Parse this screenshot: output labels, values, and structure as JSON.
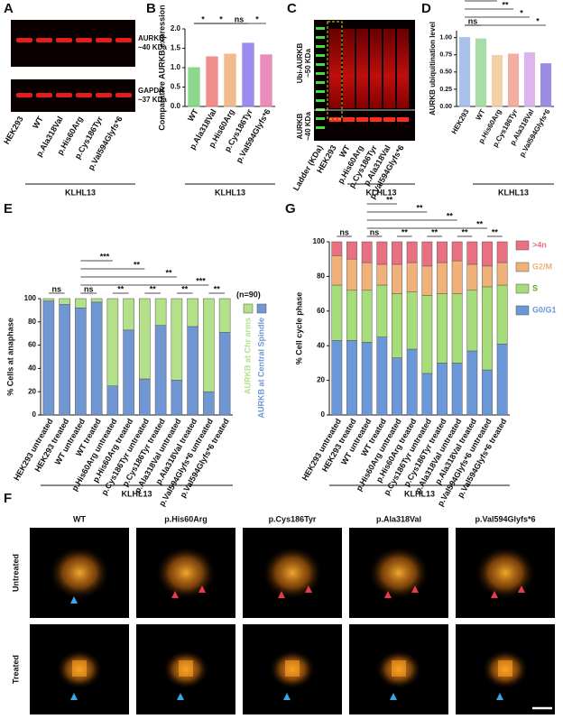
{
  "panel_a": {
    "label": "A",
    "blots": [
      {
        "protein": "AURKB",
        "size": "~40 KDa"
      },
      {
        "protein": "GAPDH",
        "size": "~37 KDa"
      }
    ],
    "lanes": [
      "HEK293",
      "WT",
      "p.Ala318Val",
      "p.His60Arg",
      "p.Cys186Tyr",
      "p.Val594Glyfs*6"
    ],
    "group": "KLHL13"
  },
  "panel_c": {
    "label": "C",
    "bands": [
      {
        "protein": "Ubi-AURKB",
        "size": "~50 KDa"
      },
      {
        "protein": "AURKB",
        "size": "~40 KDa"
      }
    ],
    "lanes": [
      "Ladder (KDa)",
      "HEK293",
      "WT",
      "p.His60Arg",
      "p.Cys186Tyr",
      "p.Ala318Val",
      "p.Val594Glyfs*6"
    ],
    "group": "KLHL13"
  },
  "panel_f": {
    "label": "F",
    "columns": [
      "WT",
      "p.His60Arg",
      "p.Cys186Tyr",
      "p.Ala318Val",
      "p.Val594Glyfs*6"
    ],
    "rows": [
      "Untreated",
      "Treated"
    ]
  },
  "chart_data": [
    {
      "panel": "B",
      "type": "bar",
      "ylabel": "Comparative AURKB expression",
      "categories": [
        "WT",
        "p.Ala318Val",
        "p.His60Arg",
        "p.Cys186Tyr",
        "p.Val594Glyfs*6"
      ],
      "values": [
        1.0,
        1.28,
        1.35,
        1.63,
        1.33
      ],
      "colors": [
        "#7ad27a",
        "#f07a7a",
        "#f0b07a",
        "#8a7ae8",
        "#e87ab0"
      ],
      "ylim": [
        0,
        2
      ],
      "yticks": [
        {
          "value": 0,
          "label": "0.0"
        },
        0.5,
        {
          "value": 1,
          "label": "1.0"
        },
        1.5,
        {
          "value": 2,
          "label": "2.0"
        }
      ],
      "significance": [
        "*",
        "*",
        "ns",
        "*"
      ],
      "group": "KLHL13"
    },
    {
      "panel": "D",
      "type": "bar",
      "ylabel": "AURKB ubiquitination level",
      "categories": [
        "HEK293",
        "WT",
        "p.His60Arg",
        "p.Cys186Tyr",
        "p.Ala318Val",
        "p.Val594Glyfs*6"
      ],
      "values": [
        1.0,
        0.98,
        0.74,
        0.76,
        0.78,
        0.62
      ],
      "colors": [
        "#9ab8e8",
        "#9ad89a",
        "#f2c89a",
        "#f0a090",
        "#d8a8e8",
        "#8a7ae0"
      ],
      "ylim": [
        0,
        1.1
      ],
      "yticks": [
        {
          "value": 0,
          "label": "0.00"
        },
        0.25,
        {
          "value": 0.5,
          "label": "0.50"
        },
        0.75,
        {
          "value": 1,
          "label": "1.00"
        }
      ],
      "significance": [
        "ns",
        "**",
        "**",
        "*",
        "*"
      ],
      "group": "KLHL13"
    },
    {
      "panel": "E",
      "type": "stacked_bar",
      "ylabel": "% Cells at anaphase",
      "note": "(n=90)",
      "categories": [
        "HEK293 untreated",
        "HEK293 treated",
        "WT untreated",
        "WT treated",
        "p.His60Arg untreated",
        "p.His60Arg treated",
        "p.Cys186Tyr untreated",
        "p.Cys186Tyr treated",
        "p.Ala318Val untreated",
        "p.Ala318Val treated",
        "p.Val594Glyfs*6 untreated",
        "p.Val594Glyfs*6 treated"
      ],
      "series": [
        {
          "name": "AURKB at Central Spindle",
          "color": "#7096d4",
          "values": [
            98,
            95,
            92,
            97,
            25,
            73,
            31,
            77,
            30,
            76,
            20,
            71
          ]
        },
        {
          "name": "AURKB at Chr arms",
          "color": "#b4e08a",
          "values": [
            2,
            5,
            8,
            3,
            75,
            27,
            69,
            23,
            70,
            24,
            80,
            29
          ]
        }
      ],
      "ylim": [
        0,
        100
      ],
      "yticks": [
        0,
        20,
        40,
        60,
        80,
        100
      ],
      "significance": [
        "ns",
        "ns",
        "**",
        "**",
        "**",
        "**",
        "***",
        "**",
        "**",
        "***"
      ],
      "group": "KLHL13"
    },
    {
      "panel": "G",
      "type": "stacked_bar",
      "ylabel": "% Cell cycle phase",
      "categories": [
        "HEK293 untreated",
        "HEK293 treated",
        "WT untreated",
        "WT treated",
        "p.His60Arg untreated",
        "p.His60Arg treated",
        "p.Cys186Tyr untreated",
        "p.Cys186Tyr treated",
        "p.Ala318Val untreated",
        "p.Ala318Val treated",
        "p.Val594Glyfs*6 untreated",
        "p.Val594Glyfs*6 treated"
      ],
      "series": [
        {
          "name": "G0/G1",
          "color": "#6b98d8",
          "values": [
            43,
            43,
            42,
            45,
            33,
            38,
            24,
            30,
            30,
            37,
            26,
            41
          ]
        },
        {
          "name": "S",
          "color": "#a6dc7a",
          "values": [
            32,
            29,
            30,
            30,
            37,
            33,
            45,
            40,
            40,
            35,
            48,
            34
          ]
        },
        {
          "name": "G2/M",
          "color": "#eeb27a",
          "values": [
            17,
            18,
            16,
            12,
            17,
            17,
            17,
            18,
            19,
            15,
            12,
            13
          ]
        },
        {
          "name": ">4n",
          "color": "#e87080",
          "values": [
            8,
            10,
            12,
            13,
            13,
            12,
            14,
            12,
            11,
            13,
            14,
            12
          ]
        }
      ],
      "ylim": [
        0,
        100
      ],
      "yticks": [
        0,
        20,
        40,
        60,
        80,
        100
      ],
      "significance": [
        "ns",
        "ns",
        "**",
        "**",
        "**",
        "**",
        "**",
        "**",
        "**",
        "**"
      ],
      "group": "KLHL13"
    }
  ]
}
